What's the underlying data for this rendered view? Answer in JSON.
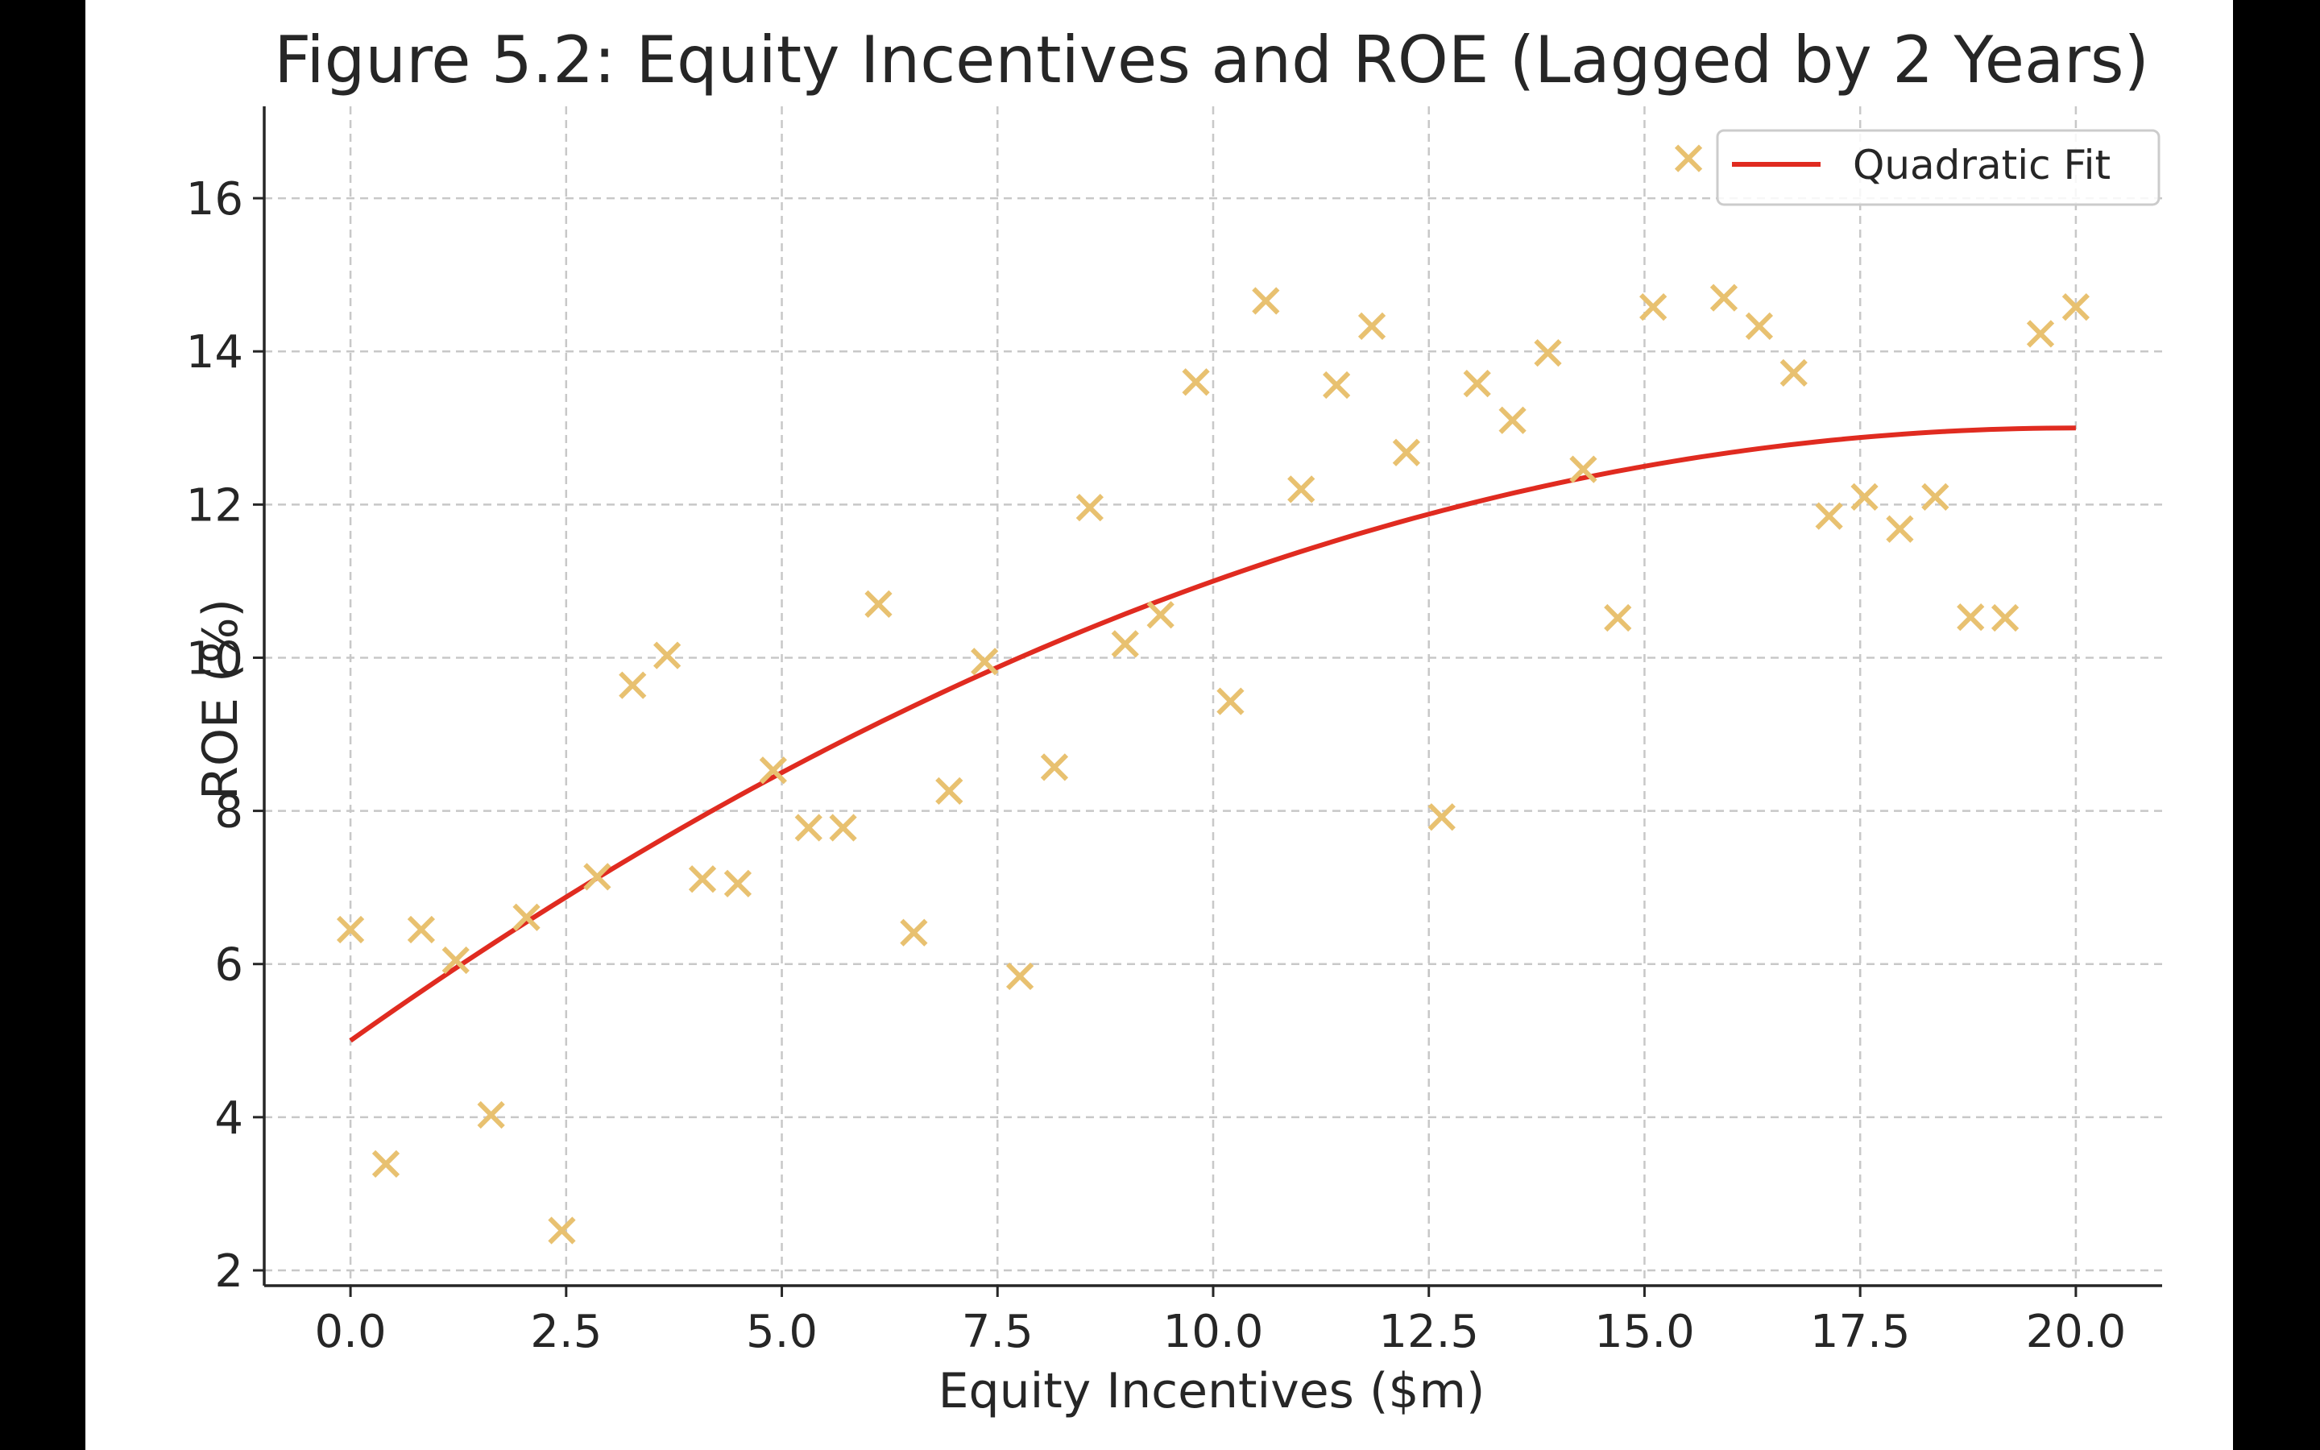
{
  "chart_data": {
    "type": "scatter",
    "title": "Figure 5.2: Equity Incentives and ROE (Lagged by 2 Years)",
    "xlabel": "Equity Incentives ($m)",
    "ylabel": "ROE (%)",
    "xlim": [
      -1.0,
      21.0
    ],
    "ylim": [
      1.8,
      17.2
    ],
    "xticks": [
      0.0,
      2.5,
      5.0,
      7.5,
      10.0,
      12.5,
      15.0,
      17.5,
      20.0
    ],
    "xtick_labels": [
      "0.0",
      "2.5",
      "5.0",
      "7.5",
      "10.0",
      "12.5",
      "15.0",
      "17.5",
      "20.0"
    ],
    "yticks": [
      2,
      4,
      6,
      8,
      10,
      12,
      14,
      16
    ],
    "ytick_labels": [
      "2",
      "4",
      "6",
      "8",
      "10",
      "12",
      "14",
      "16"
    ],
    "grid": true,
    "legend_position": "top-right",
    "points_color": "#e8c170",
    "fit_color": "#e02b20",
    "points": [
      [
        0.0,
        6.45
      ],
      [
        0.41,
        3.39
      ],
      [
        0.82,
        6.45
      ],
      [
        1.22,
        6.05
      ],
      [
        1.63,
        4.03
      ],
      [
        2.04,
        6.61
      ],
      [
        2.45,
        2.52
      ],
      [
        2.86,
        7.14
      ],
      [
        3.27,
        9.64
      ],
      [
        3.67,
        10.03
      ],
      [
        4.08,
        7.11
      ],
      [
        4.49,
        7.05
      ],
      [
        4.9,
        8.53
      ],
      [
        5.31,
        7.78
      ],
      [
        5.71,
        7.78
      ],
      [
        6.12,
        10.7
      ],
      [
        6.53,
        6.41
      ],
      [
        6.94,
        8.26
      ],
      [
        7.35,
        9.95
      ],
      [
        7.76,
        5.84
      ],
      [
        8.16,
        8.57
      ],
      [
        8.57,
        11.96
      ],
      [
        8.98,
        10.18
      ],
      [
        9.39,
        10.56
      ],
      [
        9.8,
        13.6
      ],
      [
        10.2,
        9.43
      ],
      [
        10.61,
        14.66
      ],
      [
        11.02,
        12.2
      ],
      [
        11.43,
        13.56
      ],
      [
        11.84,
        14.33
      ],
      [
        12.24,
        12.68
      ],
      [
        12.65,
        7.92
      ],
      [
        13.06,
        13.58
      ],
      [
        13.47,
        13.1
      ],
      [
        13.88,
        13.98
      ],
      [
        14.29,
        12.46
      ],
      [
        14.69,
        10.52
      ],
      [
        15.1,
        14.58
      ],
      [
        15.51,
        16.52
      ],
      [
        15.92,
        14.7
      ],
      [
        16.33,
        14.33
      ],
      [
        16.73,
        13.72
      ],
      [
        17.14,
        11.85
      ],
      [
        17.55,
        12.1
      ],
      [
        17.96,
        11.68
      ],
      [
        18.37,
        12.1
      ],
      [
        18.78,
        10.53
      ],
      [
        19.18,
        10.52
      ],
      [
        19.59,
        14.23
      ],
      [
        20.0,
        14.58
      ]
    ],
    "series": [
      {
        "name": "Quadratic Fit",
        "kind": "line",
        "coefficients": [
          5.0,
          0.8,
          -0.02
        ],
        "x_range": [
          0,
          20
        ]
      }
    ]
  }
}
